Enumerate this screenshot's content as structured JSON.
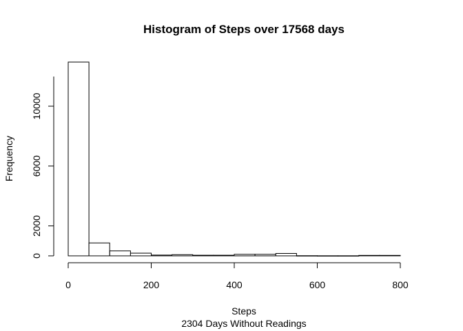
{
  "chart_data": {
    "type": "bar",
    "title": "Histogram of Steps over 17568 days",
    "xlabel": "Steps",
    "subtitle": "2304 Days Without Readings",
    "ylabel": "Frequency",
    "bins": [
      {
        "x0": 0,
        "x1": 50,
        "count": 12950
      },
      {
        "x0": 50,
        "x1": 100,
        "count": 860
      },
      {
        "x0": 100,
        "x1": 150,
        "count": 330
      },
      {
        "x0": 150,
        "x1": 200,
        "count": 180
      },
      {
        "x0": 200,
        "x1": 250,
        "count": 50
      },
      {
        "x0": 250,
        "x1": 300,
        "count": 80
      },
      {
        "x0": 300,
        "x1": 350,
        "count": 40
      },
      {
        "x0": 350,
        "x1": 400,
        "count": 40
      },
      {
        "x0": 400,
        "x1": 450,
        "count": 100
      },
      {
        "x0": 450,
        "x1": 500,
        "count": 100
      },
      {
        "x0": 500,
        "x1": 550,
        "count": 160
      },
      {
        "x0": 550,
        "x1": 600,
        "count": 10
      },
      {
        "x0": 600,
        "x1": 650,
        "count": 5
      },
      {
        "x0": 650,
        "x1": 700,
        "count": 5
      },
      {
        "x0": 700,
        "x1": 750,
        "count": 30
      },
      {
        "x0": 750,
        "x1": 800,
        "count": 30
      }
    ],
    "xlim": [
      0,
      850
    ],
    "ylim": [
      0,
      13000
    ],
    "xticks": [
      0,
      200,
      400,
      600,
      800
    ],
    "yticks": [
      0,
      2000,
      6000,
      10000
    ]
  }
}
